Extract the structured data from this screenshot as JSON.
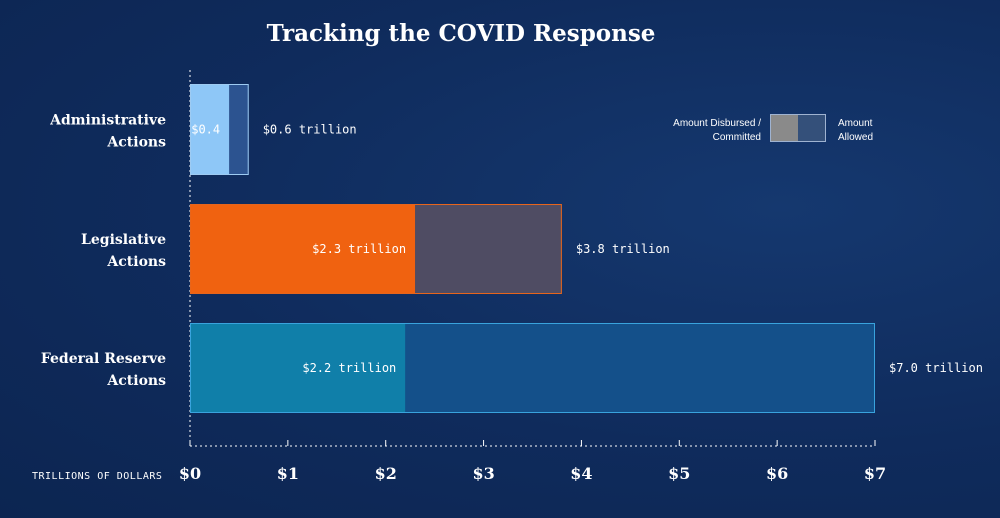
{
  "chart_data": {
    "type": "bar",
    "orientation": "horizontal",
    "title": "Tracking the COVID Response",
    "xlabel": "TRILLIONS OF DOLLARS",
    "xlim": [
      0,
      7
    ],
    "ticks": [
      {
        "value": 0,
        "label": "$0"
      },
      {
        "value": 1,
        "label": "$1"
      },
      {
        "value": 2,
        "label": "$2"
      },
      {
        "value": 3,
        "label": "$3"
      },
      {
        "value": 4,
        "label": "$4"
      },
      {
        "value": 5,
        "label": "$5"
      },
      {
        "value": 6,
        "label": "$6"
      },
      {
        "value": 7,
        "label": "$7"
      }
    ],
    "categories": [
      {
        "lines": [
          "Administrative",
          "Actions"
        ],
        "disbursed": 0.4,
        "allowed": 0.6,
        "disbursed_label": "$0.4",
        "allowed_label": "$0.6 trillion",
        "disbursed_color": "#8ec7f7",
        "allowed_color": "#2c5390",
        "border_color": "#9ecbf2",
        "disbursed_text_color": "#111111"
      },
      {
        "lines": [
          "Legislative",
          "Actions"
        ],
        "disbursed": 2.3,
        "allowed": 3.8,
        "disbursed_label": "$2.3 trillion",
        "allowed_label": "$3.8 trillion",
        "disbursed_color": "#f06210",
        "allowed_color": "#4f4c63",
        "border_color": "#e7651c",
        "disbursed_text_color": "#111111"
      },
      {
        "lines": [
          "Federal Reserve",
          "Actions"
        ],
        "disbursed": 2.2,
        "allowed": 7.0,
        "disbursed_label": "$2.2 trillion",
        "allowed_label": "$7.0 trillion",
        "disbursed_color": "#107fa9",
        "allowed_color": "#14508a",
        "border_color": "#39a3dd",
        "disbursed_text_color": "#ffffff"
      }
    ],
    "legend": {
      "position": "top-right",
      "disbursed_lines": [
        "Amount Disbursed /",
        "Committed"
      ],
      "allowed_lines": [
        "Amount",
        "Allowed"
      ],
      "disbursed_color": "#8a8a8a",
      "allowed_color": "#34507a"
    }
  }
}
